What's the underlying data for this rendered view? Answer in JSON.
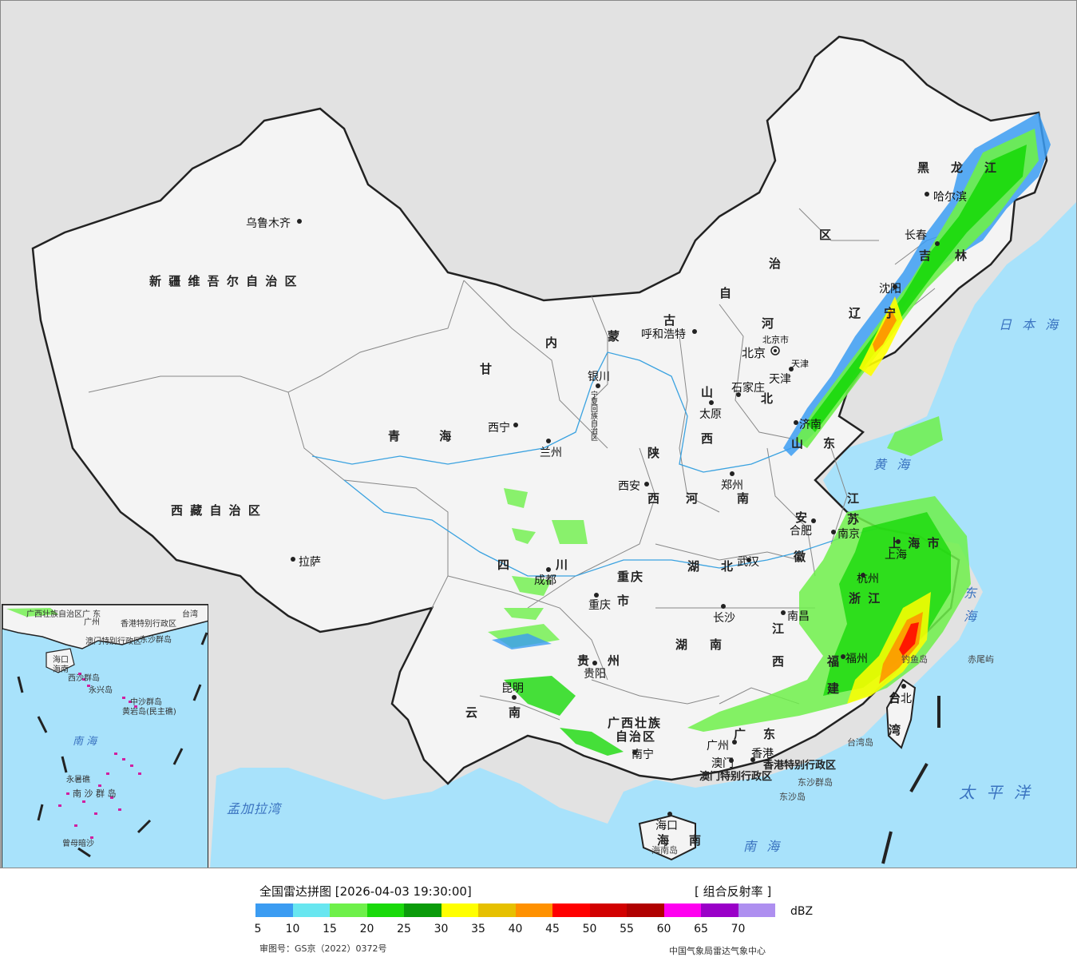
{
  "map": {
    "provinces": [
      {
        "name": "新 疆 维 吾 尔 自 治 区"
      },
      {
        "name": "西 藏 自 治 区"
      },
      {
        "name": "青 海"
      },
      {
        "name": "甘"
      },
      {
        "name": "内"
      },
      {
        "name": "蒙"
      },
      {
        "name": "古"
      },
      {
        "name": "黑"
      },
      {
        "name": "龙"
      },
      {
        "name": "江"
      },
      {
        "name": "吉"
      },
      {
        "name": "林"
      },
      {
        "name": "辽"
      },
      {
        "name": "宁"
      },
      {
        "name": "区"
      },
      {
        "name": "治"
      },
      {
        "name": "自"
      },
      {
        "name": "河"
      },
      {
        "name": "北"
      },
      {
        "name": "山"
      },
      {
        "name": "西"
      },
      {
        "name": "陕"
      },
      {
        "name": "西"
      },
      {
        "name": "河"
      },
      {
        "name": "南"
      },
      {
        "name": "山"
      },
      {
        "name": "东"
      },
      {
        "name": "江"
      },
      {
        "name": "苏"
      },
      {
        "name": "安"
      },
      {
        "name": "徽"
      },
      {
        "name": "上 海 市"
      },
      {
        "name": "浙 江"
      },
      {
        "name": "湖"
      },
      {
        "name": "北"
      },
      {
        "name": "四"
      },
      {
        "name": "川"
      },
      {
        "name": "重庆"
      },
      {
        "name": "市"
      },
      {
        "name": "湖"
      },
      {
        "name": "南"
      },
      {
        "name": "江"
      },
      {
        "name": "西"
      },
      {
        "name": "福"
      },
      {
        "name": "建"
      },
      {
        "name": "贵"
      },
      {
        "name": "州"
      },
      {
        "name": "云"
      },
      {
        "name": "南"
      },
      {
        "name": "广西壮族"
      },
      {
        "name": "自治区"
      },
      {
        "name": "广"
      },
      {
        "name": "东"
      },
      {
        "name": "台"
      },
      {
        "name": "湾"
      },
      {
        "name": "海"
      },
      {
        "name": "南"
      },
      {
        "name": "宁夏回族自治区"
      },
      {
        "name": "天津"
      },
      {
        "name": "北京市"
      },
      {
        "name": "香港特别行政区"
      },
      {
        "name": "澳门特别行政区"
      }
    ],
    "cities": [
      {
        "name": "乌鲁木齐"
      },
      {
        "name": "拉萨"
      },
      {
        "name": "西宁"
      },
      {
        "name": "兰州"
      },
      {
        "name": "银川"
      },
      {
        "name": "呼和浩特"
      },
      {
        "name": "北京"
      },
      {
        "name": "天津"
      },
      {
        "name": "石家庄"
      },
      {
        "name": "太原"
      },
      {
        "name": "济南"
      },
      {
        "name": "郑州"
      },
      {
        "name": "西安"
      },
      {
        "name": "南京"
      },
      {
        "name": "合肥"
      },
      {
        "name": "上海"
      },
      {
        "name": "杭州"
      },
      {
        "name": "武汉"
      },
      {
        "name": "成都"
      },
      {
        "name": "重庆"
      },
      {
        "name": "长沙"
      },
      {
        "name": "南昌"
      },
      {
        "name": "福州"
      },
      {
        "name": "贵阳"
      },
      {
        "name": "昆明"
      },
      {
        "name": "南宁"
      },
      {
        "name": "广州"
      },
      {
        "name": "澳门"
      },
      {
        "name": "香港"
      },
      {
        "name": "台北"
      },
      {
        "name": "海口"
      },
      {
        "name": "哈尔滨"
      },
      {
        "name": "长春"
      },
      {
        "name": "沈阳"
      }
    ],
    "seas": [
      {
        "name": "日 本 海"
      },
      {
        "name": "黄 海"
      },
      {
        "name": "东 海"
      },
      {
        "name": "太 平 洋"
      },
      {
        "name": "南 海"
      },
      {
        "name": "孟加拉湾"
      }
    ],
    "islands": [
      {
        "name": "钓鱼岛"
      },
      {
        "name": "赤尾屿"
      },
      {
        "name": "台湾岛"
      },
      {
        "name": "东沙群岛"
      },
      {
        "name": "东沙岛"
      },
      {
        "name": "海南岛"
      }
    ],
    "inset": {
      "labels": [
        {
          "name": "广西壮族自治区"
        },
        {
          "name": "广 东"
        },
        {
          "name": "台湾"
        },
        {
          "name": "广州"
        },
        {
          "name": "澳门特别行政区"
        },
        {
          "name": "香港特别行政区"
        },
        {
          "name": "东沙群岛"
        },
        {
          "name": "海口"
        },
        {
          "name": "海南"
        },
        {
          "name": "西沙群岛"
        },
        {
          "name": "永兴岛"
        },
        {
          "name": "中沙群岛"
        },
        {
          "name": "黄岩岛(民主礁)"
        },
        {
          "name": "南 海"
        },
        {
          "name": "永暑礁"
        },
        {
          "name": "南 沙 群 岛"
        },
        {
          "name": "曾母暗沙"
        }
      ]
    }
  },
  "legend": {
    "title": "全国雷达拼图 [2026-04-03 19:30:00]",
    "product": "[ 组合反射率 ]",
    "unit": "dBZ",
    "colors": [
      "#3b9cf2",
      "#68e6f0",
      "#6ef04a",
      "#19d90a",
      "#0a9b0a",
      "#ffff00",
      "#e6c000",
      "#ff9100",
      "#ff0000",
      "#d20000",
      "#b00000",
      "#ff00f0",
      "#9a00c8",
      "#ae8ff0"
    ],
    "ticks": [
      "5",
      "10",
      "15",
      "20",
      "25",
      "30",
      "35",
      "40",
      "45",
      "50",
      "55",
      "60",
      "65",
      "70"
    ],
    "review": "审图号：GS京（2022）0372号",
    "org": "中国气象局雷达气象中心"
  }
}
